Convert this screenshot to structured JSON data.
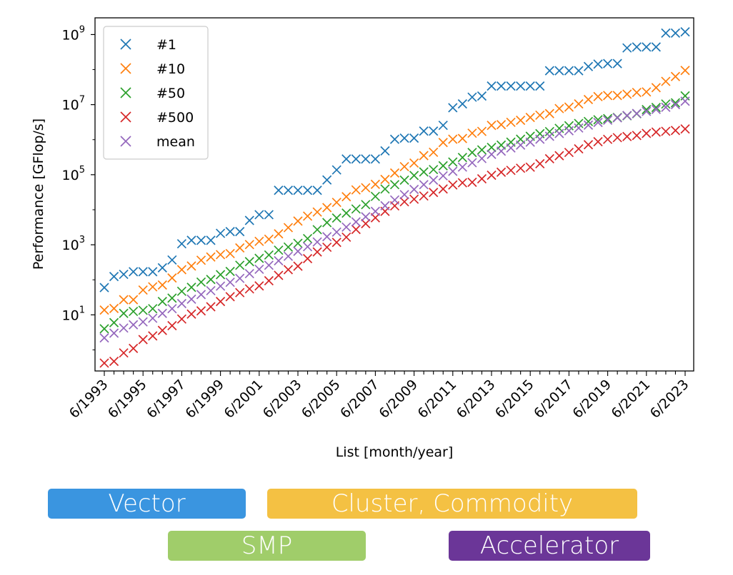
{
  "chart_data": {
    "type": "scatter",
    "marker": "x",
    "xlabel": "List [month/year]",
    "ylabel": "Performance [GFlop/s]",
    "yscale": "log",
    "ylim": [
      0.25,
      3000000000
    ],
    "ytick_labels": [
      {
        "value": 10,
        "base": "10",
        "exp": "1"
      },
      {
        "value": 1000,
        "base": "10",
        "exp": "3"
      },
      {
        "value": 100000,
        "base": "10",
        "exp": "5"
      },
      {
        "value": 10000000,
        "base": "10",
        "exp": "7"
      },
      {
        "value": 1000000000,
        "base": "10",
        "exp": "9"
      }
    ],
    "x": [
      "6/1993",
      "11/1993",
      "6/1994",
      "11/1994",
      "6/1995",
      "11/1995",
      "6/1996",
      "11/1996",
      "6/1997",
      "11/1997",
      "6/1998",
      "11/1998",
      "6/1999",
      "11/1999",
      "6/2000",
      "11/2000",
      "6/2001",
      "11/2001",
      "6/2002",
      "11/2002",
      "6/2003",
      "11/2003",
      "6/2004",
      "11/2004",
      "6/2005",
      "11/2005",
      "6/2006",
      "11/2006",
      "6/2007",
      "11/2007",
      "6/2008",
      "11/2008",
      "6/2009",
      "11/2009",
      "6/2010",
      "11/2010",
      "6/2011",
      "11/2011",
      "6/2012",
      "11/2012",
      "6/2013",
      "11/2013",
      "6/2014",
      "11/2014",
      "6/2015",
      "11/2015",
      "6/2016",
      "11/2016",
      "6/2017",
      "11/2017",
      "6/2018",
      "11/2018",
      "6/2019",
      "11/2019",
      "6/2020",
      "11/2020",
      "6/2021",
      "11/2021",
      "6/2022",
      "11/2022",
      "6/2023"
    ],
    "xtick_labels": [
      "6/1993",
      "6/1995",
      "6/1997",
      "6/1999",
      "6/2001",
      "6/2003",
      "6/2005",
      "6/2007",
      "6/2009",
      "6/2011",
      "6/2013",
      "6/2015",
      "6/2017",
      "6/2019",
      "6/2021",
      "6/2023"
    ],
    "legend": {
      "placement": "top-left"
    },
    "grid": false,
    "series": [
      {
        "name": "#1",
        "color": "#1f77b4",
        "values": [
          60,
          124,
          143,
          170,
          170,
          170,
          220,
          368,
          1068,
          1338,
          1338,
          1338,
          2121,
          2379,
          2379,
          4938,
          7226,
          7226,
          35860,
          35860,
          35860,
          35860,
          35860,
          70720,
          136800,
          280600,
          280600,
          280600,
          280600,
          478200,
          1026000,
          1105000,
          1105000,
          1759000,
          1759000,
          2566000,
          8162000,
          10510000,
          16320000,
          17590000,
          33860000,
          33860000,
          33860000,
          33860000,
          33860000,
          33860000,
          93010000,
          93010000,
          93010000,
          93010000,
          122300000,
          143500000,
          148600000,
          148600000,
          415500000,
          442000000,
          442000000,
          442000000,
          1102000000,
          1102000000,
          1194000000
        ]
      },
      {
        "name": "#10",
        "color": "#ff7f0e",
        "values": [
          13.7,
          15.2,
          27.0,
          27.0,
          51.0,
          63.0,
          71.0,
          113.0,
          195.0,
          248.0,
          361.0,
          447.0,
          523.0,
          561.0,
          815.0,
          1013.0,
          1252.0,
          1442.0,
          2051.0,
          3083.0,
          4750.0,
          6580.0,
          8600.0,
          11500.0,
          16200.0,
          23500.0,
          36800.0,
          42400.0,
          53100.0,
          73200.0,
          111800.0,
          170000.0,
          215000.0,
          350000.0,
          437000.0,
          830000.0,
          1030000.0,
          1080000.0,
          1530000.0,
          1720000.0,
          2560000.0,
          2680000.0,
          3130000.0,
          3570000.0,
          4300000.0,
          5000000.0,
          5550000.0,
          7720000.0,
          8500000.0,
          10500000.0,
          14000000.0,
          17000000.0,
          18200000.0,
          18200000.0,
          19900000.0,
          22200000.0,
          23100000.0,
          30500000.0,
          46100000.0,
          63500000.0,
          94600000.0
        ]
      },
      {
        "name": "#50",
        "color": "#2ca02c",
        "values": [
          4.0,
          6.0,
          11.0,
          12.5,
          13.5,
          15.0,
          24.0,
          30.0,
          47.0,
          61.0,
          86.0,
          102.0,
          140.0,
          173.0,
          260.0,
          330.0,
          410.0,
          510.0,
          700.0,
          860.0,
          1100.0,
          1500.0,
          2700.0,
          4300.0,
          5800.0,
          8000.0,
          10500.0,
          14000.0,
          24000.0,
          39000.0,
          52000.0,
          70000.0,
          95000.0,
          120000.0,
          140000.0,
          180000.0,
          230000.0,
          310000.0,
          430000.0,
          510000.0,
          600000.0,
          700000.0,
          850000.0,
          1030000.0,
          1250000.0,
          1480000.0,
          1700000.0,
          2100000.0,
          2500000.0,
          2900000.0,
          3300000.0,
          3700000.0,
          4000000.0,
          4300000.0,
          4800000.0,
          5500000.0,
          7200000.0,
          8300000.0,
          10400000.0,
          11300000.0,
          17800000.0
        ]
      },
      {
        "name": "#500",
        "color": "#d62728",
        "values": [
          0.42,
          0.47,
          0.82,
          1.1,
          1.97,
          2.5,
          3.6,
          4.9,
          7.6,
          10.5,
          13.0,
          17.0,
          24.0,
          33.0,
          43.0,
          55.0,
          67.0,
          94.0,
          134.0,
          195.0,
          245.0,
          403.0,
          624.0,
          851.0,
          1170.0,
          1650.0,
          2740.0,
          4000.0,
          5900.0,
          9000.0,
          12900.0,
          16900.0,
          20000.0,
          24700.0,
          31100.0,
          39100.0,
          50900.0,
          58900.0,
          60800.0,
          76500.0,
          96600.0,
          118000.0,
          133000.0,
          153000.0,
          164000.0,
          206000.0,
          286000.0,
          349000.0,
          432000.0,
          548000.0,
          716000.0,
          875000.0,
          1022000.0,
          1142000.0,
          1230000.0,
          1316000.0,
          1511000.0,
          1646000.0,
          1730000.0,
          1830000.0,
          2020000.0
        ]
      },
      {
        "name": "mean",
        "color": "#9467bd",
        "values": [
          2.2,
          3.0,
          4.2,
          5.2,
          6.3,
          8.0,
          11.0,
          15.0,
          21.0,
          28.0,
          38.0,
          49.0,
          66.0,
          85.0,
          110.0,
          150.0,
          200.0,
          260.0,
          350.0,
          470.0,
          650.0,
          880.0,
          1200.0,
          1700.0,
          2300.0,
          3200.0,
          4500.0,
          6300.0,
          9000.0,
          13000.0,
          19000.0,
          27000.0,
          38000.0,
          52000.0,
          70000.0,
          93000.0,
          125000.0,
          165000.0,
          220000.0,
          290000.0,
          380000.0,
          470000.0,
          580000.0,
          700000.0,
          850000.0,
          1030000.0,
          1250000.0,
          1500000.0,
          1800000.0,
          2150000.0,
          2600000.0,
          3100000.0,
          3600000.0,
          4200000.0,
          4900000.0,
          5600000.0,
          6400000.0,
          7300000.0,
          8400000.0,
          10000000.0,
          12500000.0
        ]
      }
    ]
  },
  "eras": [
    {
      "id": "era-vector",
      "label": "Vector",
      "color": "#3a95e0"
    },
    {
      "id": "era-cluster",
      "label": "Cluster, Commodity",
      "color": "#f4c143"
    },
    {
      "id": "era-smp",
      "label": "SMP",
      "color": "#a0cd6a"
    },
    {
      "id": "era-acc",
      "label": "Accelerator",
      "color": "#6b3698"
    }
  ]
}
